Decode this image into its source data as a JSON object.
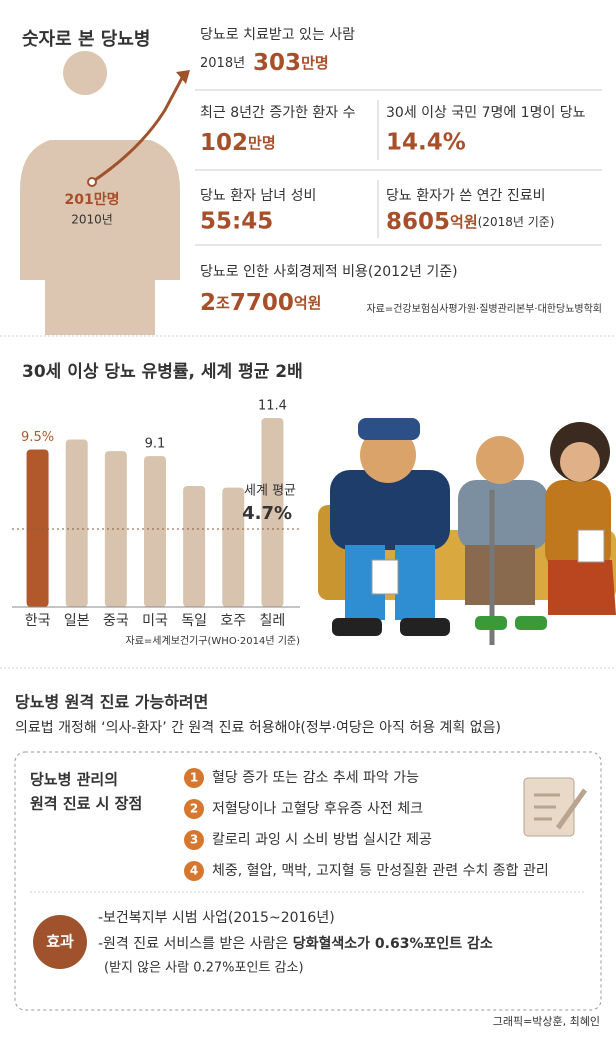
{
  "header": {
    "title": "숫자로 본 당뇨병",
    "start_value": "201만명",
    "start_year": "2010년"
  },
  "stats": {
    "treated": {
      "label": "당뇨로 치료받고 있는 사람",
      "year": "2018년",
      "number": "303",
      "unit": "만명"
    },
    "increase": {
      "label": "최근 8년간 증가한 환자 수",
      "number": "102",
      "unit": "만명"
    },
    "prevalence": {
      "label": "30세 이상 국민 7명에 1명이 당뇨",
      "number": "14.4%"
    },
    "sex_ratio": {
      "label": "당뇨 환자 남녀 성비",
      "number": "55:45"
    },
    "cost": {
      "label": "당뇨 환자가 쓴 연간 진료비",
      "number": "8605",
      "unit": "억원",
      "note": "(2018년 기준)"
    },
    "social_cost": {
      "label": "당뇨로 인한 사회경제적 비용(2012년 기준)",
      "number_a": "2",
      "unit_a": "조",
      "number_b": "7700",
      "unit_b": "억원"
    },
    "source": "자료=건강보험심사평가원·질병관리본부·대한당뇨병학회"
  },
  "chart_data": {
    "type": "bar",
    "title": "30세 이상 당뇨 유병률, 세계 평균 2배",
    "categories": [
      "한국",
      "일본",
      "중국",
      "미국",
      "독일",
      "호주",
      "칠레"
    ],
    "values": [
      9.5,
      10.1,
      9.4,
      9.1,
      7.3,
      7.2,
      11.4
    ],
    "value_labels": [
      "9.5%",
      null,
      null,
      "9.1",
      null,
      null,
      "11.4"
    ],
    "colors": [
      "#b1592b",
      "#d8c3ae",
      "#d8c3ae",
      "#d8c3ae",
      "#d8c3ae",
      "#d8c3ae",
      "#d8c3ae"
    ],
    "label_colors": [
      "#b1592b",
      "#333333",
      "#333333",
      "#333333",
      "#333333",
      "#333333",
      "#333333"
    ],
    "ylim": [
      0,
      12
    ],
    "reference_line": {
      "value": 4.7,
      "label": "세계 평균",
      "value_label": "4.7%"
    },
    "source": "자료=세계보건기구(WHO·2014년 기준)"
  },
  "telemedicine": {
    "title": "당뇨병 원격 진료 가능하려면",
    "subtitle": "의료법 개정해 ‘의사-환자’ 간 원격 진료 허용해야(정부·여당은 아직 허용 계획 없음)",
    "box_title": [
      "당뇨병 관리의",
      "원격 진료 시 장점"
    ],
    "items": [
      {
        "num": "1",
        "text": "혈당 증가 또는 감소 추세 파악 가능"
      },
      {
        "num": "2",
        "text": "저혈당이나 고혈당 후유증 사전 체크"
      },
      {
        "num": "3",
        "text": "칼로리 과잉 시 소비 방법 실시간 제공"
      },
      {
        "num": "4",
        "text": "체중, 혈압, 맥박, 고지혈 등 만성질환 관련 수치 종합 관리"
      }
    ],
    "effect_label": "효과",
    "effect_1": "-보건복지부 시범 사업(2015~2016년)",
    "effect_2": "-원격 진료 서비스를 받은 사람은 ",
    "effect_2_bold": "당화혈색소가 0.63%포인트 감소",
    "effect_3": "(받지 않은 사람 0.27%포인트 감소)"
  },
  "credit": "그래픽=박상훈, 최혜인"
}
